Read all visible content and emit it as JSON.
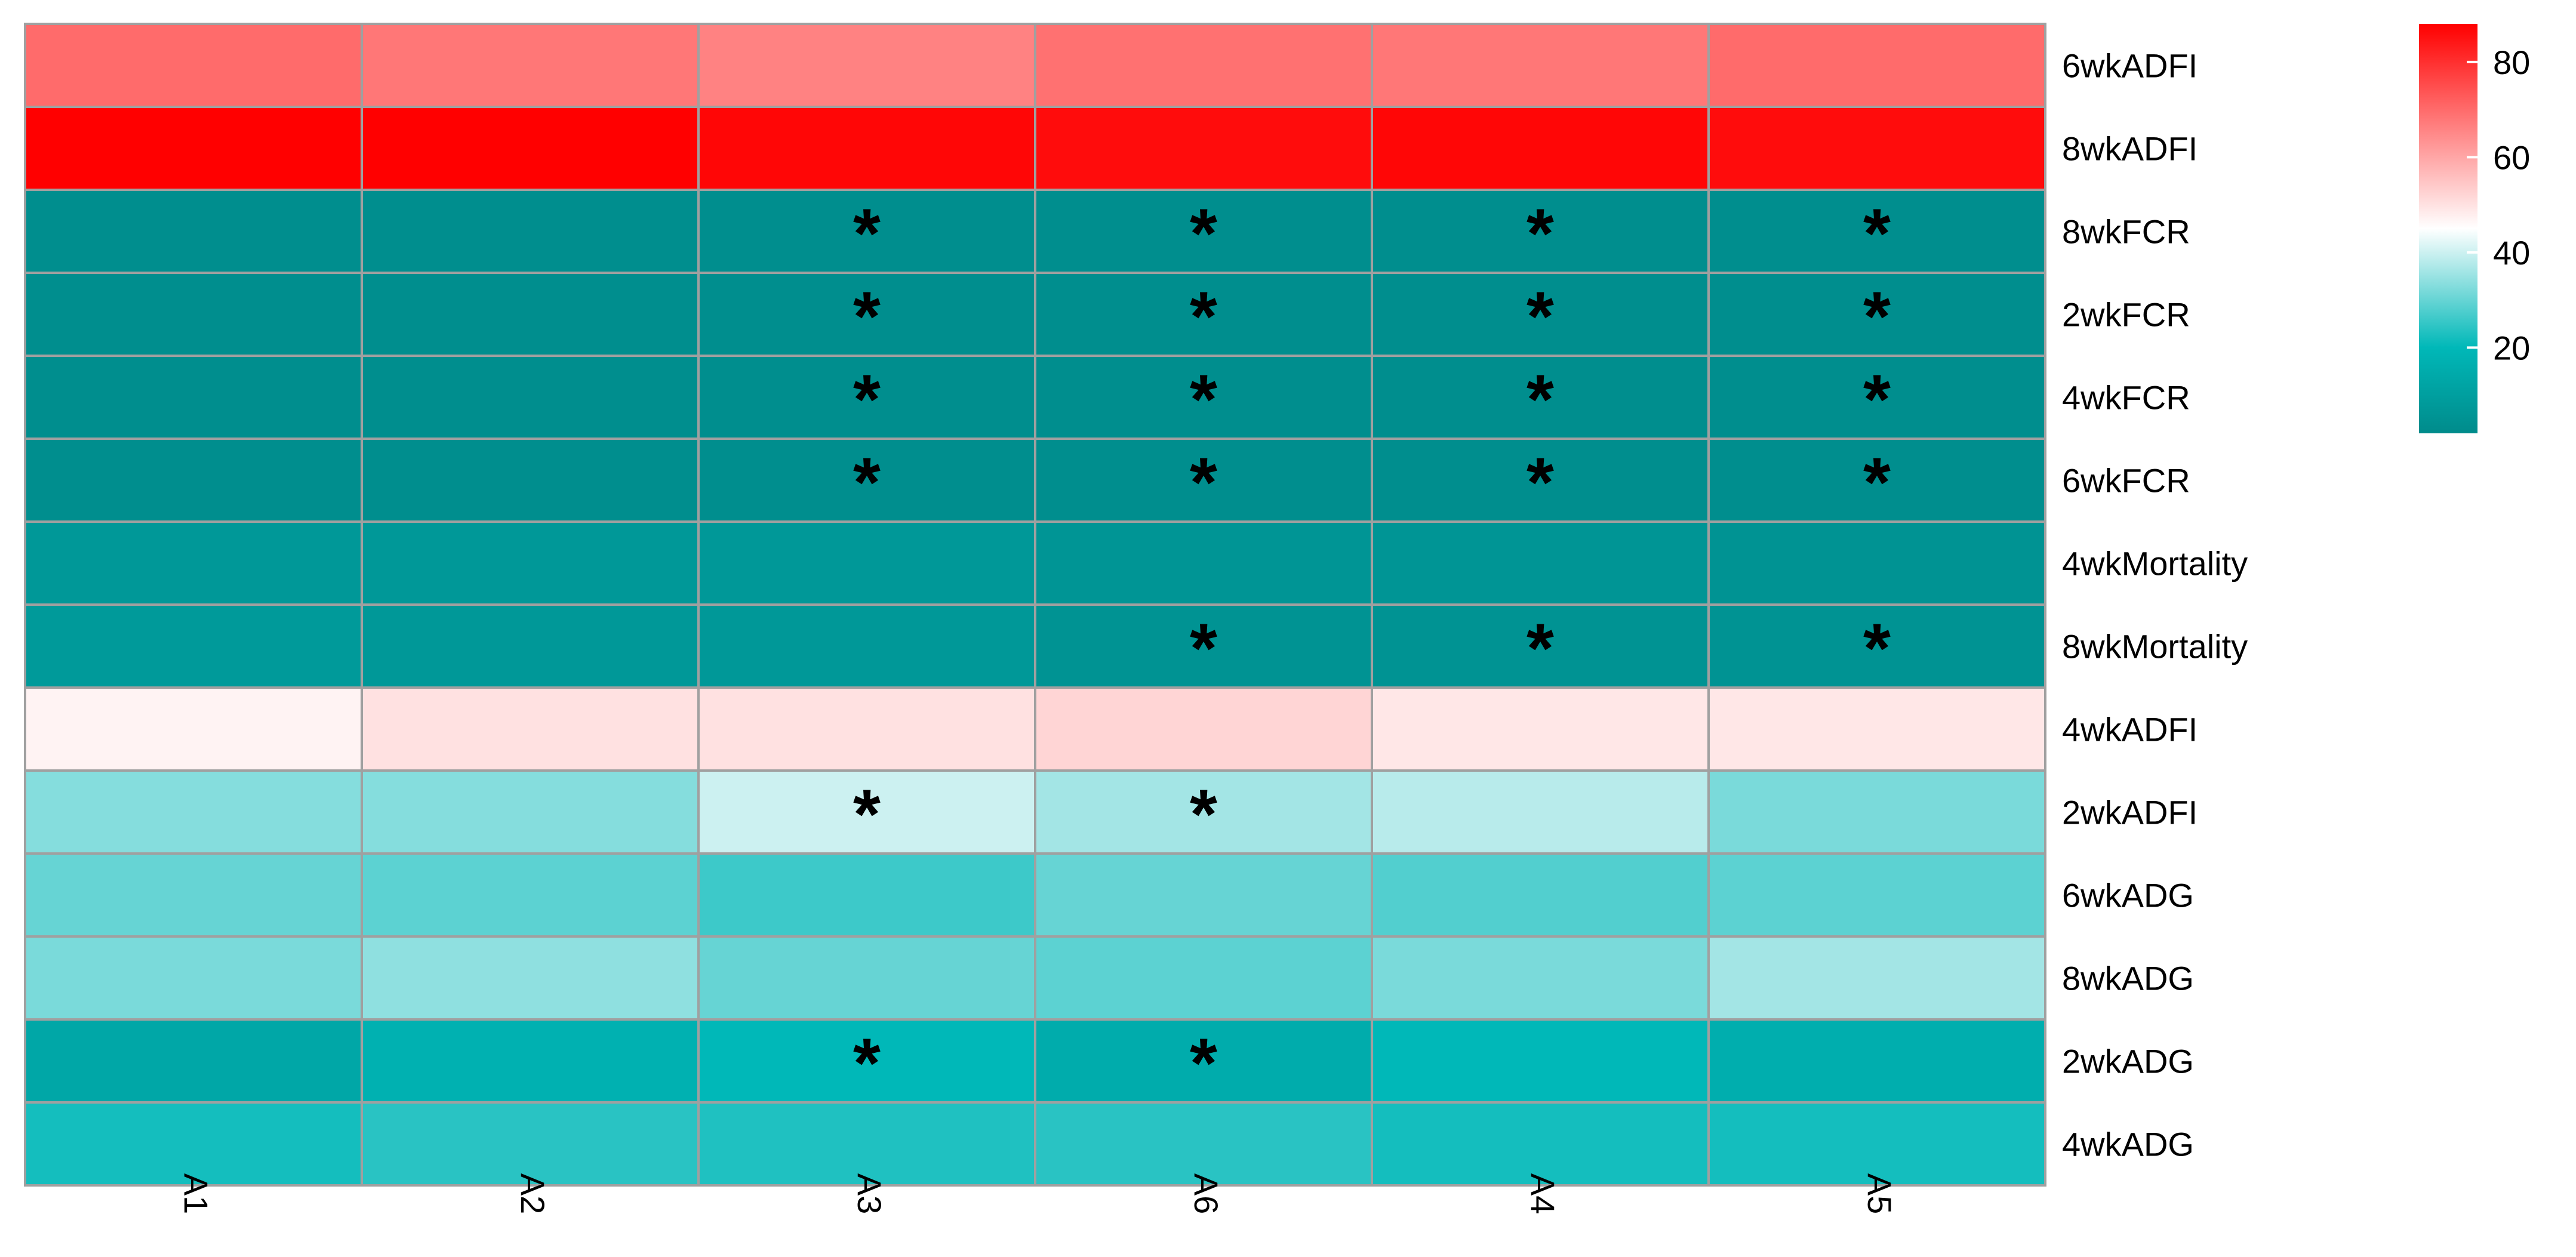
{
  "chart_data": {
    "type": "heatmap",
    "title": "",
    "xlabel": "",
    "ylabel": "",
    "columns": [
      "A1",
      "A2",
      "A3",
      "A6",
      "A4",
      "A5"
    ],
    "rows": [
      "6wkADFI",
      "8wkADFI",
      "8wkFCR",
      "2wkFCR",
      "4wkFCR",
      "6wkFCR",
      "4wkMortality",
      "8wkMortality",
      "4wkADFI",
      "2wkADFI",
      "6wkADG",
      "8wkADG",
      "2wkADG",
      "4wkADG"
    ],
    "values": [
      [
        70,
        68,
        66,
        69,
        68,
        70
      ],
      [
        88,
        88,
        87,
        86,
        87,
        86
      ],
      [
        3,
        3,
        3,
        3,
        3,
        3
      ],
      [
        3,
        3,
        3,
        3,
        3,
        3
      ],
      [
        3,
        3,
        3,
        3,
        3,
        3
      ],
      [
        3,
        3,
        3,
        3,
        3,
        3
      ],
      [
        7,
        7,
        7,
        6,
        6,
        5
      ],
      [
        8,
        7,
        7,
        5,
        5,
        5
      ],
      [
        47,
        50,
        50,
        52,
        49,
        49
      ],
      [
        33,
        33,
        40,
        36,
        38,
        32
      ],
      [
        30,
        29,
        26,
        30,
        28,
        29
      ],
      [
        32,
        34,
        30,
        29,
        32,
        36
      ],
      [
        13,
        17,
        20,
        15,
        20,
        16
      ],
      [
        22,
        24,
        23,
        24,
        22,
        22
      ]
    ],
    "significant": [
      [
        false,
        false,
        false,
        false,
        false,
        false
      ],
      [
        false,
        false,
        false,
        false,
        false,
        false
      ],
      [
        false,
        false,
        true,
        true,
        true,
        true
      ],
      [
        false,
        false,
        true,
        true,
        true,
        true
      ],
      [
        false,
        false,
        true,
        true,
        true,
        true
      ],
      [
        false,
        false,
        true,
        true,
        true,
        true
      ],
      [
        false,
        false,
        false,
        false,
        false,
        false
      ],
      [
        false,
        false,
        false,
        true,
        true,
        true
      ],
      [
        false,
        false,
        false,
        false,
        false,
        false
      ],
      [
        false,
        false,
        true,
        true,
        false,
        false
      ],
      [
        false,
        false,
        false,
        false,
        false,
        false
      ],
      [
        false,
        false,
        false,
        false,
        false,
        false
      ],
      [
        false,
        false,
        true,
        true,
        false,
        false
      ],
      [
        false,
        false,
        false,
        false,
        false,
        false
      ]
    ],
    "marker": "*",
    "colorscale": {
      "range": [
        2,
        88
      ],
      "stops": [
        {
          "value": 2,
          "color": "#008B8B"
        },
        {
          "value": 20,
          "color": "#00B8B8"
        },
        {
          "value": 45,
          "color": "#FFFFFF"
        },
        {
          "value": 88,
          "color": "#FF0000"
        }
      ]
    },
    "legend": {
      "ticks": [
        20,
        40,
        60,
        80
      ],
      "position": "top-right"
    },
    "grid_color": "#A0A0A0"
  }
}
